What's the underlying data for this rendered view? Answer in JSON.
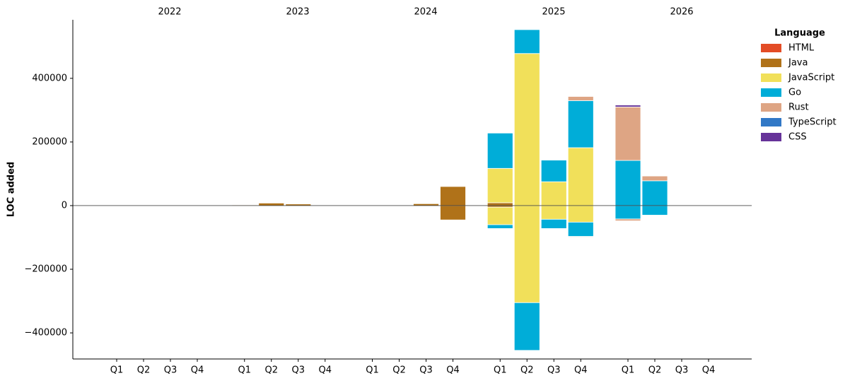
{
  "chart_data": {
    "type": "diverging-stacked-bar",
    "y_label": "LOC added",
    "group_labels": [
      "2022",
      "2023",
      "2024",
      "2025",
      "2026"
    ],
    "categories": [
      "Q1",
      "Q2",
      "Q3",
      "Q4",
      "Q1",
      "Q2",
      "Q3",
      "Q4",
      "Q1",
      "Q2",
      "Q3",
      "Q4",
      "Q1",
      "Q2",
      "Q3",
      "Q4",
      "Q1",
      "Q2",
      "Q3",
      "Q4"
    ],
    "ylim": [
      -482000,
      584000
    ],
    "yticks": [
      {
        "value": -400000,
        "label": "−400000"
      },
      {
        "value": -200000,
        "label": "−200000"
      },
      0,
      200000,
      400000
    ],
    "legend_title": "Language",
    "legend": "upper right outside",
    "series": [
      {
        "name": "HTML",
        "color": "#e34c26",
        "values": [
          0,
          0,
          0,
          0,
          0,
          0,
          0,
          0,
          0,
          0,
          0,
          0,
          0,
          0,
          0,
          0,
          0,
          0,
          0,
          0
        ],
        "removed": [
          0,
          0,
          0,
          0,
          0,
          0,
          0,
          0,
          0,
          0,
          0,
          0,
          0,
          0,
          0,
          0,
          0,
          0,
          0,
          0
        ]
      },
      {
        "name": "Java",
        "color": "#b07219",
        "values": [
          0,
          0,
          0,
          0,
          2000,
          8000,
          5000,
          0,
          0,
          0,
          6000,
          60000,
          9000,
          0,
          0,
          0,
          0,
          0,
          0,
          0
        ],
        "removed": [
          0,
          0,
          0,
          0,
          0,
          0,
          0,
          0,
          0,
          0,
          0,
          -45000,
          -5000,
          0,
          0,
          0,
          0,
          0,
          0,
          0
        ]
      },
      {
        "name": "JavaScript",
        "color": "#f1e05a",
        "values": [
          0,
          0,
          0,
          0,
          0,
          0,
          0,
          0,
          0,
          0,
          0,
          0,
          108000,
          478000,
          75000,
          182000,
          0,
          0,
          0,
          0
        ],
        "removed": [
          0,
          0,
          0,
          0,
          0,
          0,
          0,
          0,
          0,
          0,
          0,
          0,
          -55000,
          -305000,
          -43000,
          -52000,
          0,
          0,
          0,
          0
        ]
      },
      {
        "name": "Go",
        "color": "#00add8",
        "values": [
          0,
          0,
          0,
          0,
          0,
          0,
          0,
          0,
          0,
          0,
          0,
          0,
          111000,
          75000,
          68000,
          148000,
          142000,
          78000,
          0,
          0
        ],
        "removed": [
          0,
          0,
          0,
          0,
          0,
          0,
          0,
          0,
          0,
          0,
          0,
          0,
          -12000,
          -150000,
          -29000,
          -45000,
          -42000,
          -30000,
          0,
          0
        ]
      },
      {
        "name": "Rust",
        "color": "#dea584",
        "values": [
          0,
          0,
          0,
          0,
          0,
          0,
          0,
          0,
          0,
          0,
          0,
          0,
          0,
          0,
          0,
          13000,
          168000,
          15000,
          0,
          0
        ],
        "removed": [
          0,
          0,
          0,
          0,
          0,
          0,
          0,
          0,
          0,
          0,
          0,
          0,
          0,
          0,
          0,
          -2000,
          -6000,
          0,
          0,
          0
        ]
      },
      {
        "name": "TypeScript",
        "color": "#3178c6",
        "values": [
          0,
          0,
          0,
          0,
          0,
          0,
          0,
          0,
          0,
          0,
          0,
          0,
          0,
          0,
          0,
          0,
          0,
          0,
          0,
          0
        ],
        "removed": [
          0,
          0,
          0,
          0,
          0,
          0,
          0,
          0,
          0,
          0,
          0,
          0,
          0,
          0,
          0,
          0,
          0,
          0,
          0,
          0
        ]
      },
      {
        "name": "CSS",
        "color": "#663399",
        "values": [
          0,
          0,
          0,
          0,
          0,
          0,
          0,
          0,
          0,
          0,
          0,
          0,
          0,
          0,
          0,
          0,
          6000,
          0,
          0,
          0
        ],
        "removed": [
          0,
          0,
          0,
          0,
          0,
          0,
          0,
          0,
          0,
          0,
          0,
          0,
          0,
          0,
          0,
          0,
          0,
          0,
          0,
          0
        ]
      }
    ]
  }
}
